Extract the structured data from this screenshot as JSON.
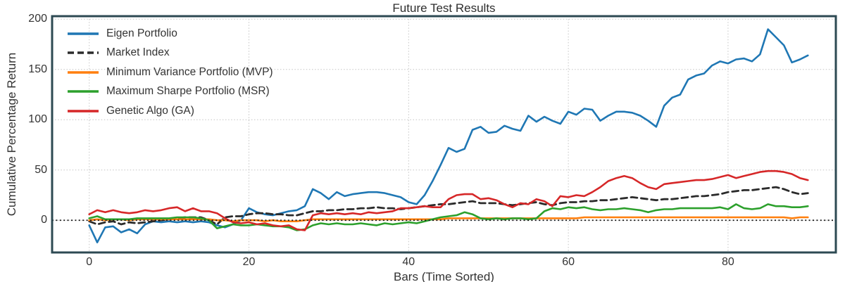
{
  "chart_data": {
    "type": "line",
    "title": "Future Test Results",
    "xlabel": "Bars (Time Sorted)",
    "ylabel": "Cumulative Percentage Return",
    "x_start": 0,
    "x_step": 1,
    "xlim": [
      -4.65,
      93.5
    ],
    "ylim": [
      -32,
      203
    ],
    "xticks": [
      0,
      20,
      40,
      60,
      80
    ],
    "yticks": [
      0,
      50,
      100,
      150,
      200
    ],
    "grid": true,
    "grid_style": "dotted",
    "legend_position": "upper-left",
    "zero_line": true,
    "colors": {
      "axes_edge": "#2d4a53",
      "grid": "#c4c4c4",
      "text": "#333333",
      "zero_line": "#161616",
      "background": "#ffffff"
    },
    "series": [
      {
        "name": "Eigen Portfolio",
        "color": "#1f77b4",
        "dash": "solid",
        "values": [
          -5,
          -22,
          -7,
          -6,
          -12,
          -9,
          -13,
          -4,
          -1,
          -2,
          -1,
          -2,
          -1,
          -2,
          -1,
          -2,
          -5,
          -7,
          -4,
          0,
          12,
          8,
          6,
          5,
          7,
          9,
          10,
          14,
          31,
          27,
          21,
          28,
          24,
          26,
          27,
          28,
          28,
          27,
          25,
          23,
          18,
          16,
          25,
          39,
          55,
          72,
          68,
          71,
          90,
          93,
          87,
          88,
          94,
          91,
          89,
          104,
          98,
          103,
          99,
          96,
          108,
          105,
          111,
          110,
          99,
          104,
          108,
          108,
          107,
          104,
          99,
          93,
          114,
          122,
          125,
          140,
          144,
          146,
          154,
          158,
          156,
          160,
          161,
          158,
          165,
          190,
          182,
          174,
          157,
          160,
          164
        ]
      },
      {
        "name": "Market Index",
        "color": "#2b2b2b",
        "dash": "dashed",
        "values": [
          -1,
          -4,
          -2,
          -1,
          -4,
          -2,
          -3,
          -2,
          -1,
          0,
          1,
          2,
          3,
          3,
          3,
          0,
          -4,
          3,
          4,
          4,
          6,
          7,
          7,
          6,
          6,
          5,
          5,
          7,
          9,
          9,
          10,
          10,
          11,
          11,
          12,
          12,
          13,
          12,
          12,
          11,
          12,
          13,
          14,
          15,
          16,
          16,
          17,
          18,
          19,
          17,
          17,
          17,
          16,
          15,
          16,
          17,
          18,
          16,
          15,
          17,
          18,
          18,
          19,
          19,
          20,
          20,
          21,
          22,
          23,
          22,
          21,
          20,
          21,
          21,
          22,
          23,
          24,
          24,
          25,
          26,
          28,
          29,
          30,
          30,
          31,
          32,
          33,
          31,
          28,
          26,
          27
        ]
      },
      {
        "name": "Minimum Variance Portfolio (MVP)",
        "color": "#ff7f0e",
        "dash": "solid",
        "values": [
          0,
          1,
          0,
          1,
          1,
          0,
          1,
          1,
          1,
          1,
          1,
          1,
          1,
          1,
          1,
          1,
          0,
          0,
          -1,
          0,
          0,
          0,
          -1,
          0,
          -1,
          -1,
          -1,
          0,
          1,
          1,
          1,
          1,
          1,
          1,
          1,
          1,
          1,
          1,
          1,
          1,
          1,
          1,
          1,
          1,
          1,
          2,
          2,
          2,
          2,
          2,
          2,
          2,
          2,
          2,
          2,
          2,
          2,
          2,
          2,
          2,
          2,
          2,
          3,
          3,
          3,
          3,
          3,
          3,
          3,
          3,
          3,
          3,
          3,
          3,
          3,
          3,
          3,
          3,
          3,
          3,
          3,
          3,
          3,
          3,
          3,
          3,
          3,
          3,
          2,
          3,
          3
        ]
      },
      {
        "name": "Maximum Sharpe Portfolio (MSR)",
        "color": "#2ca02c",
        "dash": "solid",
        "values": [
          2,
          4,
          1,
          1,
          1,
          1,
          2,
          2,
          2,
          2,
          2,
          3,
          3,
          3,
          2,
          0,
          -8,
          -6,
          -4,
          -5,
          -5,
          -4,
          -5,
          -6,
          -6,
          -7,
          -10,
          -9,
          -5,
          -3,
          -4,
          -3,
          -4,
          -4,
          -3,
          -4,
          -5,
          -3,
          -4,
          -3,
          -2,
          -3,
          -1,
          1,
          3,
          4,
          5,
          8,
          6,
          2,
          1,
          2,
          1,
          2,
          2,
          1,
          2,
          9,
          12,
          11,
          13,
          12,
          13,
          11,
          10,
          11,
          11,
          12,
          11,
          10,
          8,
          10,
          11,
          11,
          12,
          12,
          12,
          12,
          12,
          13,
          11,
          16,
          12,
          11,
          12,
          16,
          14,
          14,
          13,
          13,
          14
        ]
      },
      {
        "name": "Genetic Algo (GA)",
        "color": "#d62728",
        "dash": "solid",
        "values": [
          6,
          10,
          8,
          10,
          8,
          7,
          8,
          10,
          9,
          10,
          12,
          13,
          9,
          12,
          9,
          9,
          7,
          2,
          -2,
          -3,
          -2,
          -4,
          -3,
          -5,
          -6,
          -5,
          -9,
          -10,
          5,
          7,
          6,
          7,
          6,
          7,
          6,
          8,
          7,
          8,
          9,
          12,
          12,
          13,
          14,
          13,
          13,
          21,
          25,
          26,
          26,
          21,
          22,
          20,
          16,
          13,
          17,
          16,
          21,
          19,
          14,
          24,
          23,
          25,
          24,
          28,
          33,
          39,
          42,
          44,
          42,
          37,
          33,
          31,
          36,
          37,
          38,
          39,
          40,
          40,
          41,
          43,
          45,
          42,
          44,
          46,
          48,
          49,
          49,
          48,
          46,
          42,
          40
        ]
      }
    ]
  }
}
